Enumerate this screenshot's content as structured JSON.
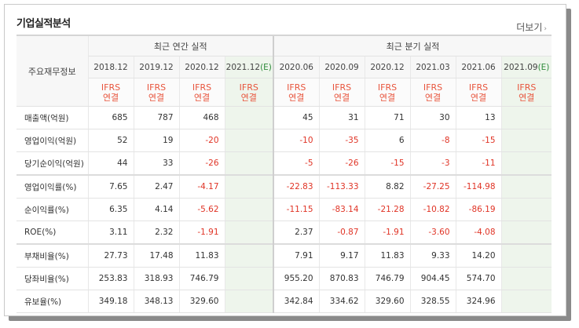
{
  "title": "기업실적분석",
  "more_label": "더보기",
  "more_arrow": "›",
  "corner_label": "주요재무정보",
  "groups": {
    "annual": "최근 연간 실적",
    "quarter": "최근 분기 실적"
  },
  "periods": [
    {
      "label": "2018.12",
      "estimate": false
    },
    {
      "label": "2019.12",
      "estimate": false
    },
    {
      "label": "2020.12",
      "estimate": false
    },
    {
      "label": "2021.12",
      "estimate": true,
      "est_mark": "(E)"
    },
    {
      "label": "2020.06",
      "estimate": false
    },
    {
      "label": "2020.09",
      "estimate": false
    },
    {
      "label": "2020.12",
      "estimate": false
    },
    {
      "label": "2021.03",
      "estimate": false
    },
    {
      "label": "2021.06",
      "estimate": false
    },
    {
      "label": "2021.09",
      "estimate": true,
      "est_mark": "(E)"
    }
  ],
  "ifrs": {
    "line1": "IFRS",
    "line2": "연결"
  },
  "rows": [
    {
      "label": "매출액(억원)",
      "values": [
        "685",
        "787",
        "468",
        "",
        "45",
        "31",
        "71",
        "30",
        "13",
        ""
      ]
    },
    {
      "label": "영업이익(억원)",
      "values": [
        "52",
        "19",
        "-20",
        "",
        "-10",
        "-35",
        "6",
        "-8",
        "-15",
        ""
      ]
    },
    {
      "label": "당기순이익(억원)",
      "values": [
        "44",
        "33",
        "-26",
        "",
        "-5",
        "-26",
        "-15",
        "-3",
        "-11",
        ""
      ]
    },
    {
      "label": "영업이익률(%)",
      "values": [
        "7.65",
        "2.47",
        "-4.17",
        "",
        "-22.83",
        "-113.33",
        "8.82",
        "-27.25",
        "-114.98",
        ""
      ]
    },
    {
      "label": "순이익률(%)",
      "values": [
        "6.35",
        "4.14",
        "-5.62",
        "",
        "-11.15",
        "-83.14",
        "-21.28",
        "-10.82",
        "-86.19",
        ""
      ]
    },
    {
      "label": "ROE(%)",
      "values": [
        "3.11",
        "2.32",
        "-1.91",
        "",
        "2.37",
        "-0.87",
        "-1.91",
        "-3.60",
        "-4.08",
        ""
      ]
    },
    {
      "label": "부채비율(%)",
      "values": [
        "27.73",
        "17.48",
        "11.83",
        "",
        "7.91",
        "9.17",
        "11.83",
        "9.33",
        "14.20",
        ""
      ]
    },
    {
      "label": "당좌비율(%)",
      "values": [
        "253.83",
        "318.93",
        "746.79",
        "",
        "955.20",
        "870.83",
        "746.79",
        "904.45",
        "574.70",
        ""
      ]
    },
    {
      "label": "유보율(%)",
      "values": [
        "349.18",
        "348.13",
        "329.60",
        "",
        "342.84",
        "334.62",
        "329.60",
        "328.55",
        "324.96",
        ""
      ]
    }
  ],
  "colors": {
    "negative": "#e03426",
    "ifrs": "#e8553d",
    "estimate_bg": "#eef5ec",
    "estimate_text": "#2e8b3a"
  }
}
